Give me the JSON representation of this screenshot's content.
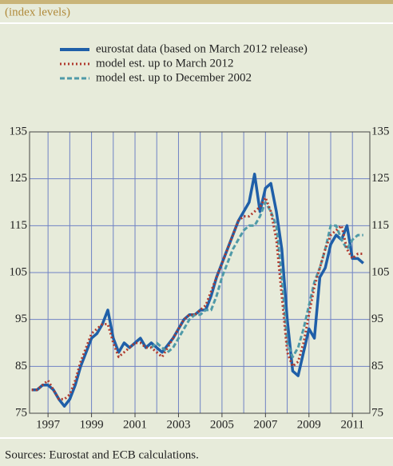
{
  "chart_data": {
    "type": "line",
    "subtitle": "(index levels)",
    "source": "Sources: Eurostat and ECB calculations.",
    "x": [
      1996.25,
      1996.5,
      1996.75,
      1997,
      1997.25,
      1997.5,
      1997.75,
      1998,
      1998.25,
      1998.5,
      1998.75,
      1999,
      1999.25,
      1999.5,
      1999.75,
      2000,
      2000.25,
      2000.5,
      2000.75,
      2001,
      2001.25,
      2001.5,
      2001.75,
      2002,
      2002.25,
      2002.5,
      2002.75,
      2003,
      2003.25,
      2003.5,
      2003.75,
      2004,
      2004.25,
      2004.5,
      2004.75,
      2005,
      2005.25,
      2005.5,
      2005.75,
      2006,
      2006.25,
      2006.5,
      2006.75,
      2007,
      2007.25,
      2007.5,
      2007.75,
      2008,
      2008.25,
      2008.5,
      2008.75,
      2009,
      2009.25,
      2009.5,
      2009.75,
      2010,
      2010.25,
      2010.5,
      2010.75,
      2011,
      2011.25,
      2011.5
    ],
    "series": [
      {
        "name": "eurostat data (based on March 2012 release)",
        "color": "#1f5fa8",
        "style": "solid",
        "values": [
          80,
          80,
          81,
          81,
          80,
          78,
          76.5,
          78,
          81,
          85,
          88,
          91,
          92,
          94,
          97,
          91,
          88,
          90,
          89,
          90,
          91,
          89,
          90,
          89,
          88,
          89.5,
          91,
          93,
          95,
          96,
          96,
          97,
          97,
          100,
          104,
          107,
          110,
          113,
          116,
          118,
          120,
          126,
          118,
          123,
          124,
          118,
          110,
          95,
          84,
          83,
          88,
          93,
          91,
          104,
          106,
          111,
          113,
          112,
          115,
          108,
          108,
          107
        ]
      },
      {
        "name": "model est. up to March 2012",
        "color": "#b03a2e",
        "style": "dotted",
        "values": [
          80,
          80,
          81,
          82,
          80,
          78,
          78,
          79,
          82,
          86,
          89,
          92,
          93,
          94,
          94,
          90,
          87,
          88,
          89,
          90,
          90,
          89,
          89,
          88,
          87,
          89,
          91,
          93,
          95,
          96,
          96,
          97,
          98,
          101,
          104,
          107,
          110,
          113,
          116,
          117,
          117,
          118,
          119,
          121,
          118,
          112,
          100,
          88,
          85,
          86,
          90,
          96,
          102,
          106,
          110,
          113,
          114,
          115,
          110,
          108,
          109,
          109
        ]
      },
      {
        "name": "model est. up to December 2002",
        "color": "#4f9aa8",
        "style": "dashed",
        "values": [
          null,
          null,
          null,
          null,
          null,
          null,
          null,
          null,
          null,
          null,
          null,
          null,
          null,
          null,
          null,
          null,
          null,
          null,
          null,
          null,
          null,
          null,
          89,
          90,
          89,
          88,
          89,
          91,
          93,
          95,
          96,
          96,
          97,
          97,
          100,
          104,
          107,
          110,
          112,
          114,
          115,
          115,
          117,
          120,
          118,
          115,
          104,
          90,
          87,
          89,
          93,
          98,
          103,
          106,
          110,
          115,
          115,
          112,
          110,
          112,
          113,
          113
        ]
      }
    ],
    "xlim": [
      1996.15,
      2011.8
    ],
    "xticks": [
      1997,
      1999,
      2001,
      2003,
      2005,
      2007,
      2009,
      2011
    ],
    "xgrid": [
      1997,
      1998,
      1999,
      2000,
      2001,
      2002,
      2003,
      2004,
      2005,
      2006,
      2007,
      2008,
      2009,
      2010,
      2011
    ],
    "ylim": [
      75,
      135
    ],
    "yticks": [
      75,
      85,
      95,
      105,
      115,
      125,
      135
    ],
    "grid": true
  }
}
